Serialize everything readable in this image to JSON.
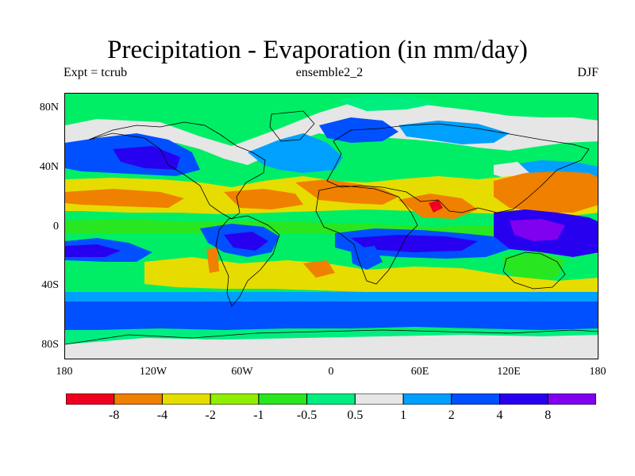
{
  "header": {
    "title": "Precipitation - Evaporation (in mm/day)",
    "experiment": "Expt = tcrub",
    "dataset": "ensemble2_2",
    "season": "DJF"
  },
  "map": {
    "lat_ticks": [
      "80N",
      "40N",
      "0",
      "40S",
      "80S"
    ],
    "lon_ticks": [
      "180",
      "120W",
      "60W",
      "0",
      "60E",
      "120E",
      "180"
    ]
  },
  "colorbar": {
    "colors": [
      "#f0001e",
      "#f08000",
      "#e6dc00",
      "#90ee00",
      "#28e620",
      "#00ee80",
      "#e6e6e6",
      "#00a0ff",
      "#0050ff",
      "#2800f0",
      "#8000f0"
    ],
    "labels": [
      "-8",
      "-4",
      "-2",
      "-1",
      "-0.5",
      "0.5",
      "1",
      "2",
      "4",
      "8"
    ]
  },
  "colors": {
    "red": "#f0001e",
    "orange": "#f08000",
    "yellow": "#e6dc00",
    "lime": "#90ee00",
    "green": "#28e620",
    "sea_green": "#00ee80",
    "gray": "#e6e6e6",
    "sky": "#00a0ff",
    "blue": "#0050ff",
    "deep_blue": "#2800f0",
    "purple": "#8000f0"
  }
}
